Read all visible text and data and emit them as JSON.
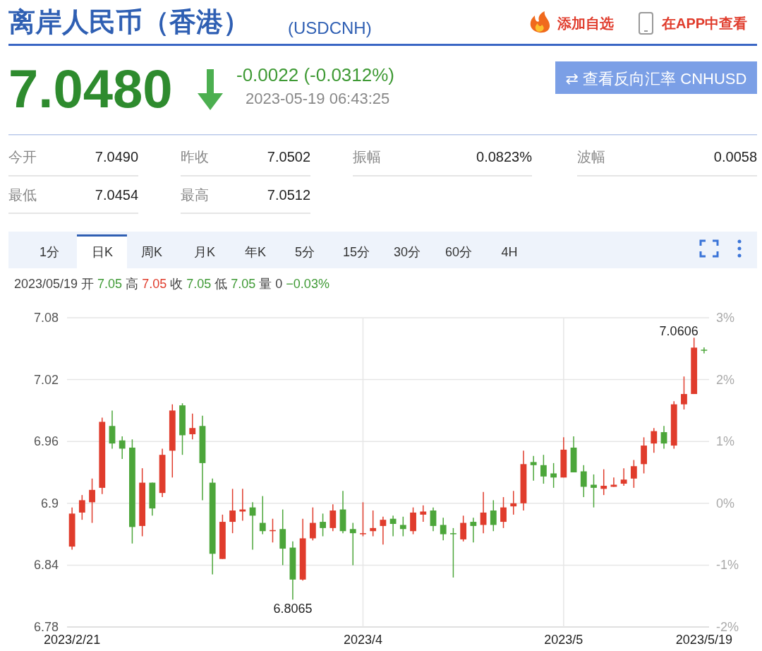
{
  "chart_data": {
    "type": "candlestick",
    "title": "离岸人民币（香港）",
    "subtitle": "(USDCNH)",
    "categories": [
      "2023/2/21",
      null,
      null,
      null,
      null,
      null,
      null,
      null,
      null,
      null,
      null,
      null,
      null,
      null,
      null,
      null,
      null,
      null,
      null,
      null,
      null,
      null,
      null,
      null,
      null,
      null,
      null,
      null,
      null,
      "2023/4",
      null,
      null,
      null,
      null,
      null,
      null,
      null,
      null,
      null,
      null,
      null,
      null,
      null,
      null,
      null,
      null,
      null,
      null,
      null,
      "2023/5",
      null,
      null,
      null,
      null,
      null,
      null,
      null,
      null,
      null,
      null,
      null,
      null,
      null,
      "2023/5/19"
    ],
    "ohlc": [
      [
        6.858,
        6.896,
        6.855,
        6.89
      ],
      [
        6.891,
        6.908,
        6.884,
        6.903
      ],
      [
        6.901,
        6.924,
        6.881,
        6.913
      ],
      [
        6.915,
        6.983,
        6.909,
        6.979
      ],
      [
        6.975,
        6.99,
        6.953,
        6.958
      ],
      [
        6.961,
        6.965,
        6.943,
        6.953
      ],
      [
        6.954,
        6.962,
        6.861,
        6.877
      ],
      [
        6.878,
        6.934,
        6.868,
        6.92
      ],
      [
        6.92,
        6.92,
        6.888,
        6.895
      ],
      [
        6.91,
        6.953,
        6.906,
        6.947
      ],
      [
        6.951,
        6.996,
        6.925,
        6.99
      ],
      [
        6.995,
        6.997,
        6.947,
        6.966
      ],
      [
        6.967,
        6.987,
        6.962,
        6.973
      ],
      [
        6.975,
        6.985,
        6.903,
        6.939
      ],
      [
        6.92,
        6.924,
        6.831,
        6.851
      ],
      [
        6.846,
        6.889,
        6.846,
        6.882
      ],
      [
        6.882,
        6.914,
        6.871,
        6.893
      ],
      [
        6.892,
        6.914,
        6.883,
        6.894
      ],
      [
        6.896,
        6.901,
        6.855,
        6.888
      ],
      [
        6.881,
        6.907,
        6.87,
        6.873
      ],
      [
        6.873,
        6.885,
        6.862,
        6.874
      ],
      [
        6.875,
        6.894,
        6.84,
        6.856
      ],
      [
        6.857,
        6.863,
        6.8065,
        6.826
      ],
      [
        6.826,
        6.885,
        6.825,
        6.866
      ],
      [
        6.866,
        6.896,
        6.864,
        6.881
      ],
      [
        6.882,
        6.89,
        6.868,
        6.876
      ],
      [
        6.876,
        6.899,
        6.873,
        6.893
      ],
      [
        6.894,
        6.912,
        6.871,
        6.873
      ],
      [
        6.875,
        6.881,
        6.84,
        6.871
      ],
      [
        6.87,
        6.901,
        6.868,
        6.871
      ],
      [
        6.873,
        6.893,
        6.868,
        6.876
      ],
      [
        6.878,
        6.887,
        6.86,
        6.884
      ],
      [
        6.885,
        6.888,
        6.868,
        6.88
      ],
      [
        6.879,
        6.887,
        6.868,
        6.875
      ],
      [
        6.873,
        6.896,
        6.87,
        6.891
      ],
      [
        6.889,
        6.898,
        6.882,
        6.892
      ],
      [
        6.893,
        6.896,
        6.873,
        6.878
      ],
      [
        6.879,
        6.886,
        6.864,
        6.87
      ],
      [
        6.871,
        6.876,
        6.828,
        6.87
      ],
      [
        6.865,
        6.888,
        6.863,
        6.881
      ],
      [
        6.882,
        6.886,
        6.862,
        6.878
      ],
      [
        6.879,
        6.911,
        6.871,
        6.891
      ],
      [
        6.893,
        6.903,
        6.873,
        6.879
      ],
      [
        6.882,
        6.906,
        6.876,
        6.896
      ],
      [
        6.897,
        6.912,
        6.889,
        6.9
      ],
      [
        6.9,
        6.951,
        6.893,
        6.938
      ],
      [
        6.94,
        6.946,
        6.922,
        6.937
      ],
      [
        6.937,
        6.947,
        6.919,
        6.926
      ],
      [
        6.929,
        6.939,
        6.915,
        6.925
      ],
      [
        6.925,
        6.964,
        6.925,
        6.952
      ],
      [
        6.954,
        6.965,
        6.93,
        6.93
      ],
      [
        6.931,
        6.937,
        6.906,
        6.916
      ],
      [
        6.918,
        6.928,
        6.896,
        6.915
      ],
      [
        6.914,
        6.933,
        6.908,
        6.917
      ],
      [
        6.916,
        6.925,
        6.916,
        6.918
      ],
      [
        6.919,
        6.934,
        6.917,
        6.923
      ],
      [
        6.924,
        6.942,
        6.915,
        6.936
      ],
      [
        6.938,
        6.964,
        6.929,
        6.956
      ],
      [
        6.958,
        6.973,
        6.949,
        6.97
      ],
      [
        6.969,
        6.975,
        6.953,
        6.958
      ],
      [
        6.956,
        6.999,
        6.953,
        6.996
      ],
      [
        6.996,
        7.023,
        6.991,
        7.006
      ],
      [
        7.006,
        7.0606,
        7.006,
        7.051
      ],
      [
        7.049,
        7.0512,
        7.0454,
        7.048
      ]
    ],
    "colors": [
      "#e03c2c",
      "#e03c2c",
      "#e03c2c",
      "#e03c2c",
      "#4ca63a",
      "#4ca63a",
      "#4ca63a",
      "#e03c2c",
      "#4ca63a",
      "#e03c2c",
      "#e03c2c",
      "#4ca63a",
      "#e03c2c",
      "#4ca63a",
      "#4ca63a",
      "#e03c2c",
      "#e03c2c",
      "#e03c2c",
      "#4ca63a",
      "#4ca63a",
      "#e03c2c",
      "#4ca63a",
      "#4ca63a",
      "#e03c2c",
      "#e03c2c",
      "#4ca63a",
      "#e03c2c",
      "#4ca63a",
      "#4ca63a",
      "#e03c2c",
      "#e03c2c",
      "#e03c2c",
      "#4ca63a",
      "#4ca63a",
      "#e03c2c",
      "#e03c2c",
      "#4ca63a",
      "#4ca63a",
      "#4ca63a",
      "#e03c2c",
      "#4ca63a",
      "#e03c2c",
      "#4ca63a",
      "#e03c2c",
      "#e03c2c",
      "#e03c2c",
      "#4ca63a",
      "#4ca63a",
      "#4ca63a",
      "#e03c2c",
      "#4ca63a",
      "#4ca63a",
      "#4ca63a",
      "#e03c2c",
      "#e03c2c",
      "#e03c2c",
      "#e03c2c",
      "#e03c2c",
      "#e03c2c",
      "#4ca63a",
      "#e03c2c",
      "#e03c2c",
      "#e03c2c",
      "#4ca63a"
    ],
    "ylim": [
      6.78,
      7.08
    ],
    "yticks": [
      7.08,
      7.02,
      6.96,
      6.9,
      6.84,
      6.78
    ],
    "y2lim": [
      -2,
      3
    ],
    "y2ticks": [
      {
        "value": 3,
        "label": "3%"
      },
      {
        "value": 2,
        "label": "2%"
      },
      {
        "value": 1,
        "label": "1%"
      },
      {
        "value": 0,
        "label": "0%"
      },
      {
        "value": -1,
        "label": "-1%"
      },
      {
        "value": -2,
        "label": "-2%"
      }
    ],
    "grid": true,
    "annotations": [
      "添加自选",
      "在APP中查看",
      "7.0480",
      "-0.0022 (-0.0312%)",
      "2023-05-19 06:43:25",
      "⇄ 查看反向汇率 CNHUSD",
      "今开",
      "7.0490",
      "昨收",
      "7.0502",
      "振幅",
      "0.0823%",
      "波幅",
      "0.0058",
      "最低",
      "7.0454",
      "最高",
      "7.0512",
      "1分",
      "日K",
      "周K",
      "月K",
      "年K",
      "5分",
      "15分",
      "30分",
      "60分",
      "4H",
      "2023/05/19 开",
      "7.05",
      "高",
      "7.05",
      "收",
      "7.05",
      "低",
      "7.05",
      "量 0",
      "−0.03%",
      "7.0606",
      {
        "text": "6.8065",
        "y": 6.8065
      }
    ]
  }
}
